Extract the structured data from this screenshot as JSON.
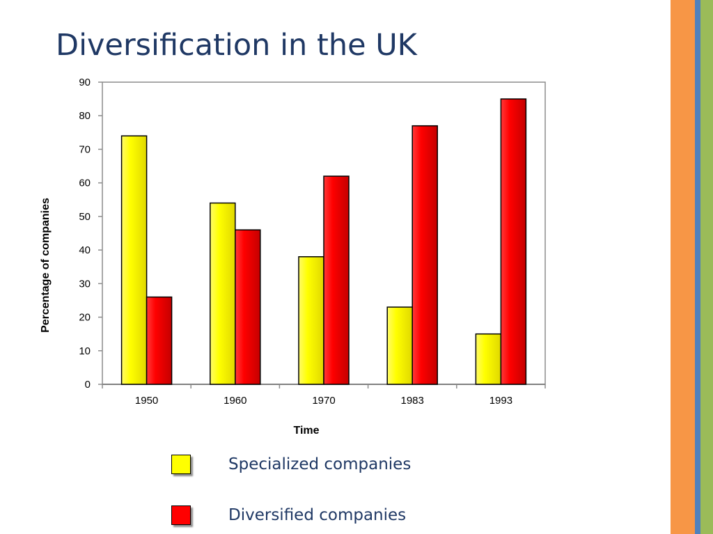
{
  "slide": {
    "title": "Diversification in the UK"
  },
  "colors": {
    "title_text": "#1f3864",
    "stripe_orange": "#f79646",
    "stripe_blue": "#4f81bd",
    "stripe_green": "#9bbb59",
    "specialized": "#ffff00",
    "diversified": "#ff0000"
  },
  "legend": {
    "items": [
      {
        "label": "Specialized companies",
        "color": "#ffff00"
      },
      {
        "label": "Diversified companies",
        "color": "#ff0000"
      }
    ]
  },
  "chart_data": {
    "type": "bar",
    "title": "",
    "xlabel": "Time",
    "ylabel": "Percentage of companies",
    "categories": [
      "1950",
      "1960",
      "1970",
      "1983",
      "1993"
    ],
    "series": [
      {
        "name": "Specialized companies",
        "color": "#ffff00",
        "values": [
          74,
          54,
          38,
          23,
          15
        ]
      },
      {
        "name": "Diversified companies",
        "color": "#ff0000",
        "values": [
          26,
          46,
          62,
          77,
          85
        ]
      }
    ],
    "ylim": [
      0,
      90
    ],
    "yticks": [
      0,
      10,
      20,
      30,
      40,
      50,
      60,
      70,
      80,
      90
    ],
    "grid": false,
    "legend_position": "bottom"
  }
}
